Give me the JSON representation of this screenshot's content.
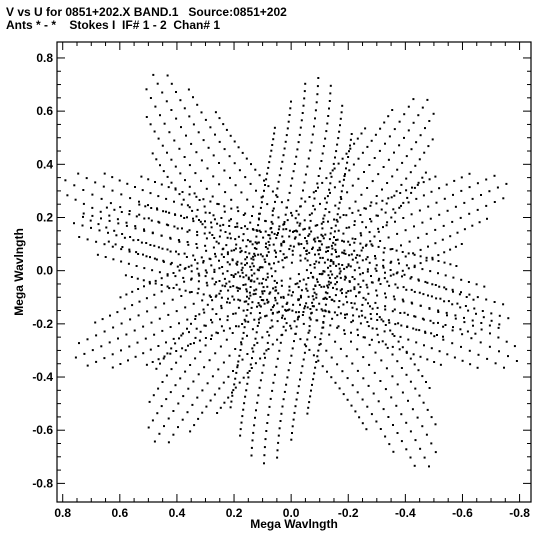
{
  "header": {
    "line1": "V vs U for 0851+202.X BAND.1   Source:0851+202",
    "line2": "Ants * - *    Stokes I  IF# 1 - 2  Chan# 1"
  },
  "chart_data": {
    "type": "scatter",
    "xlabel": "Mega Wavlngth",
    "ylabel": "Mega Wavlngth",
    "xlim": [
      0.82,
      -0.84
    ],
    "ylim": [
      -0.87,
      0.86
    ],
    "x_reversed": true,
    "xticks": [
      0.8,
      0.6,
      0.4,
      0.2,
      0.0,
      -0.2,
      -0.4,
      -0.6,
      -0.8
    ],
    "xtick_labels": [
      "0.8",
      "0.6",
      "0.4",
      "0.2",
      "0.0",
      "-0.2",
      "-0.4",
      "-0.6",
      "-0.8"
    ],
    "yticks": [
      0.8,
      0.6,
      0.4,
      0.2,
      0.0,
      -0.2,
      -0.4,
      -0.6,
      -0.8
    ],
    "ytick_labels": [
      "0.8",
      "0.6",
      "0.4",
      "0.2",
      "0.0",
      "-0.2",
      "-0.4",
      "-0.6",
      "-0.8"
    ],
    "grid": false,
    "pattern": {
      "description_points": "uv-coverage: radial spokes through the origin in several directions, each point mirrored about the origin",
      "spokes": [
        {
          "angle_deg": 95,
          "rmax": 0.73
        },
        {
          "angle_deg": 128,
          "rmax": 0.8
        },
        {
          "angle_deg": 160,
          "rmax": 0.82
        },
        {
          "angle_deg": 25,
          "rmax": 0.86
        },
        {
          "angle_deg": 55,
          "rmax": 0.88
        },
        {
          "angle_deg": 10,
          "rmax": 0.78
        }
      ],
      "tracks_per_spoke": 7,
      "points_per_track": 24
    }
  }
}
